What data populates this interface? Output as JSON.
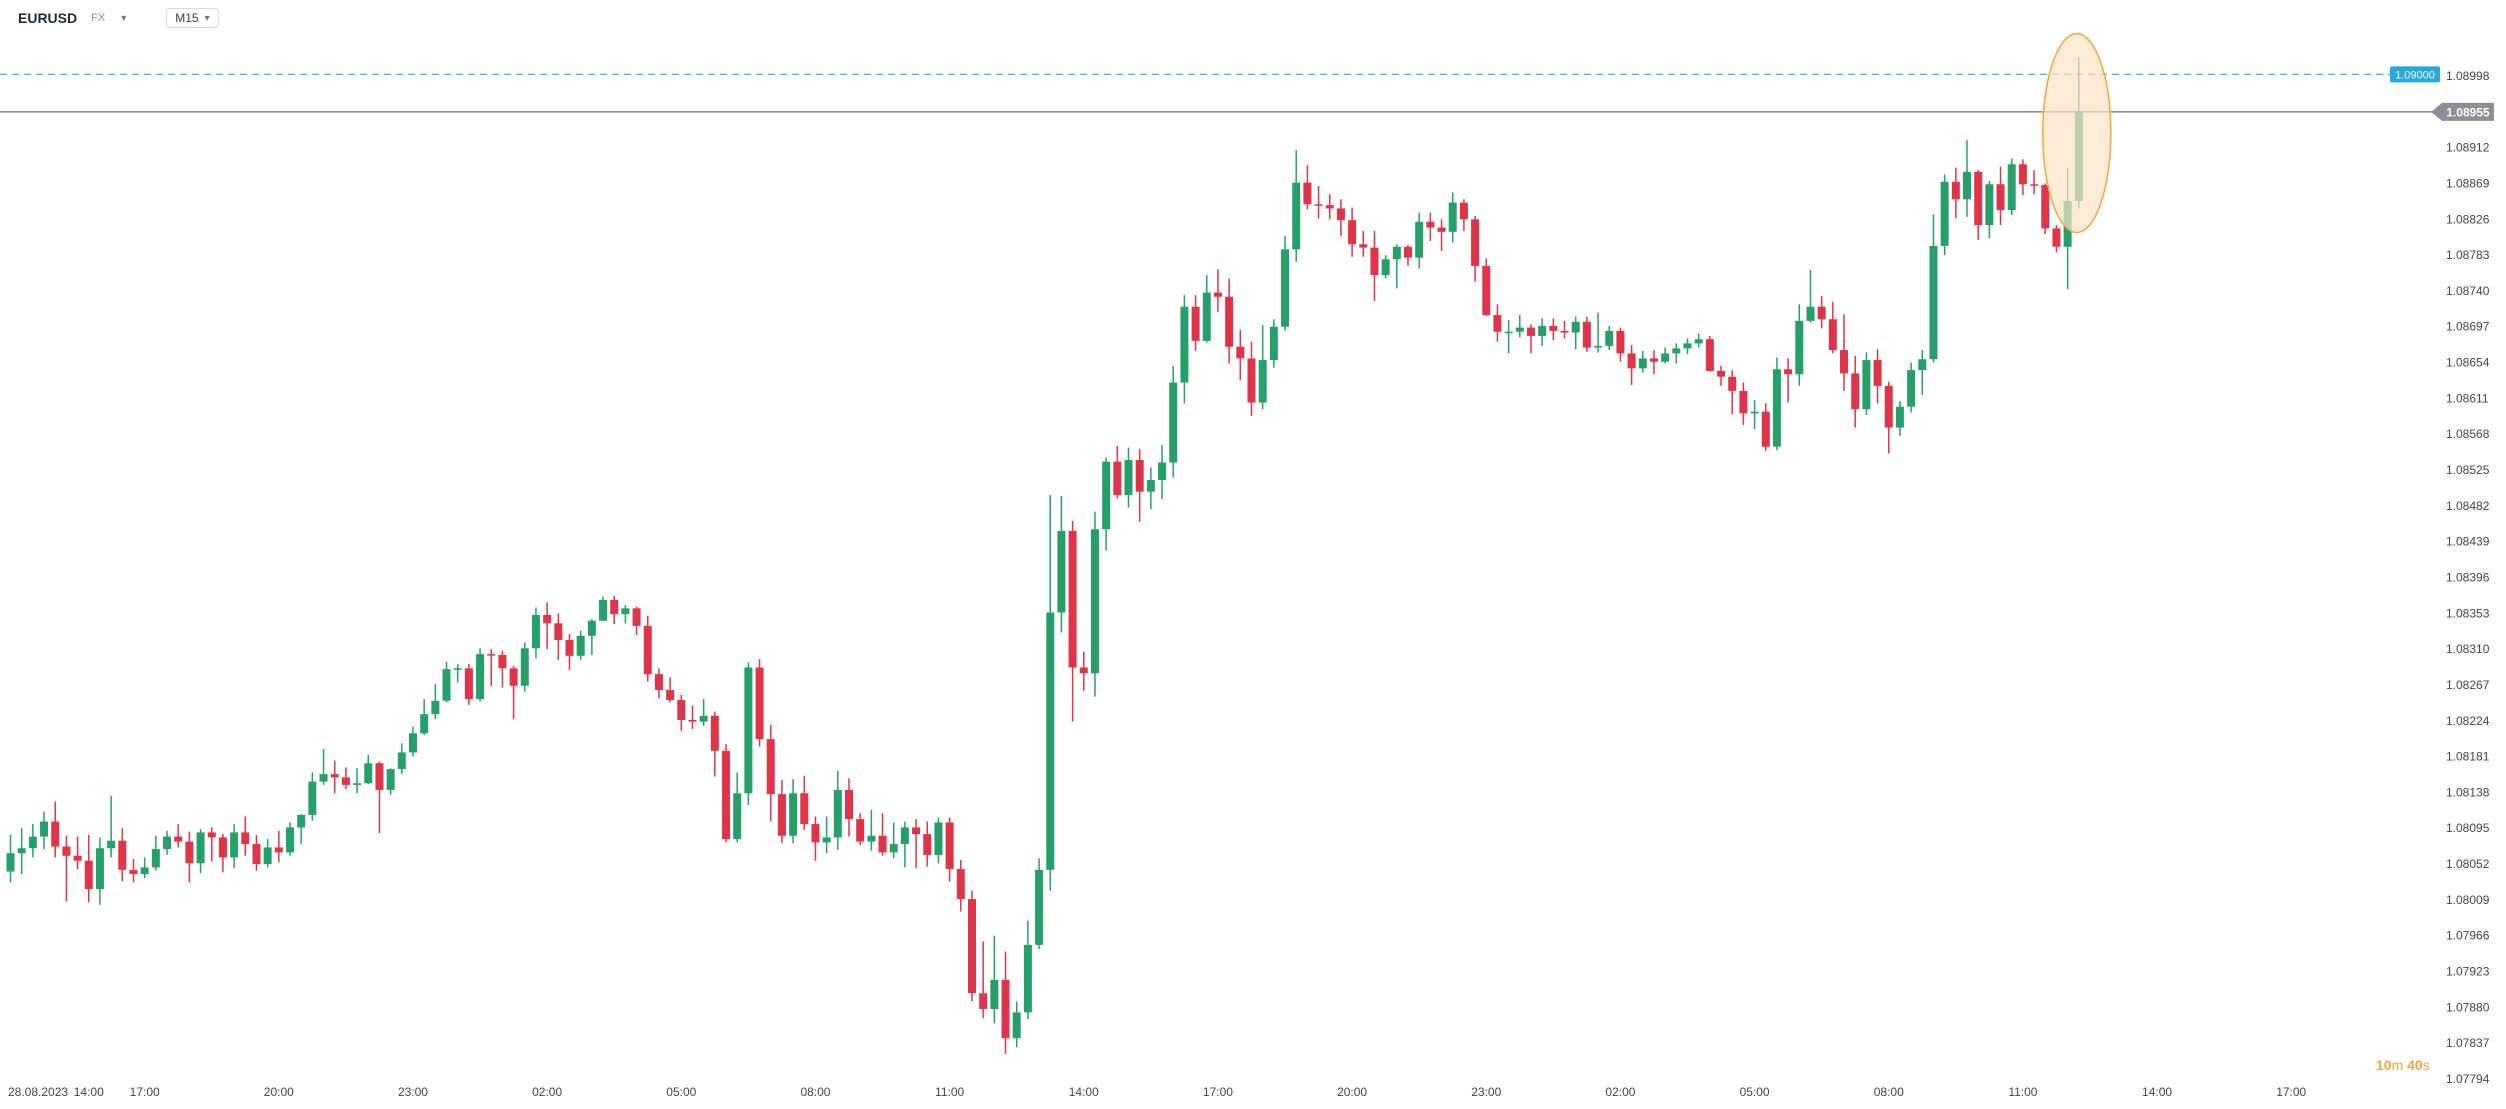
{
  "header": {
    "symbol": "EURUSD",
    "market": "FX",
    "timeframe": "M15"
  },
  "countdown": {
    "minutes": "10",
    "minutes_unit": "m",
    "seconds": "40",
    "seconds_unit": "s"
  },
  "colors": {
    "up": "#26a06a",
    "down": "#e0344b",
    "target_line": "#29a8e0",
    "price_line": "#8c8f94",
    "highlight_fill": "#fce3c4",
    "highlight_stroke": "#f4a63c",
    "axis_text": "#444444"
  },
  "chart_data": {
    "type": "candlestick",
    "symbol": "EURUSD",
    "timeframe": "M15",
    "ylim": [
      1.07794,
      1.09025
    ],
    "y_ticks": [
      "1.08998",
      "1.08955",
      "1.08912",
      "1.08869",
      "1.08826",
      "1.08783",
      "1.08740",
      "1.08697",
      "1.08654",
      "1.08611",
      "1.08568",
      "1.08525",
      "1.08482",
      "1.08439",
      "1.08396",
      "1.08353",
      "1.08310",
      "1.08267",
      "1.08224",
      "1.08181",
      "1.08138",
      "1.08095",
      "1.08052",
      "1.08009",
      "1.07966",
      "1.07923",
      "1.07880",
      "1.07837",
      "1.07794"
    ],
    "x_ticks": [
      {
        "label": "28.08.2023",
        "bar": -4
      },
      {
        "label": "14:00",
        "bar": 7
      },
      {
        "label": "17:00",
        "bar": 12
      },
      {
        "label": "20:00",
        "bar": 24
      },
      {
        "label": "23:00",
        "bar": 36
      },
      {
        "label": "02:00",
        "bar": 48
      },
      {
        "label": "05:00",
        "bar": 60
      },
      {
        "label": "08:00",
        "bar": 72
      },
      {
        "label": "11:00",
        "bar": 84
      },
      {
        "label": "14:00",
        "bar": 96
      },
      {
        "label": "17:00",
        "bar": 108
      },
      {
        "label": "20:00",
        "bar": 120
      },
      {
        "label": "23:00",
        "bar": 132
      },
      {
        "label": "02:00",
        "bar": 144
      },
      {
        "label": "05:00",
        "bar": 156
      },
      {
        "label": "08:00",
        "bar": 168
      },
      {
        "label": "11:00",
        "bar": 180
      },
      {
        "label": "14:00",
        "bar": 192
      },
      {
        "label": "17:00",
        "bar": 204
      }
    ],
    "target_price": "1.09000",
    "current_price": "1.08955",
    "bars": [
      [
        1.08043,
        1.08065,
        1.08087,
        1.0803
      ],
      [
        1.08065,
        1.08071,
        1.08095,
        1.0804
      ],
      [
        1.08071,
        1.08085,
        1.081,
        1.0806
      ],
      [
        1.08085,
        1.08103,
        1.08115,
        1.0807
      ],
      [
        1.08103,
        1.08073,
        1.08127,
        1.0806
      ],
      [
        1.08073,
        1.08062,
        1.08086,
        1.08007
      ],
      [
        1.08062,
        1.08056,
        1.08085,
        1.08046
      ],
      [
        1.08056,
        1.08022,
        1.08087,
        1.08006
      ],
      [
        1.08022,
        1.08071,
        1.08084,
        1.08003
      ],
      [
        1.08071,
        1.0808,
        1.08134,
        1.0806
      ],
      [
        1.0808,
        1.08045,
        1.08095,
        1.08031
      ],
      [
        1.08045,
        1.0804,
        1.08058,
        1.0803
      ],
      [
        1.0804,
        1.08048,
        1.0806,
        1.08035
      ],
      [
        1.08048,
        1.0807,
        1.08086,
        1.08044
      ],
      [
        1.0807,
        1.08085,
        1.08092,
        1.08063
      ],
      [
        1.08085,
        1.08079,
        1.081,
        1.08072
      ],
      [
        1.08079,
        1.08053,
        1.08091,
        1.0803
      ],
      [
        1.08053,
        1.0809,
        1.08094,
        1.08041
      ],
      [
        1.0809,
        1.08084,
        1.08096,
        1.08055
      ],
      [
        1.08084,
        1.0806,
        1.08088,
        1.08042
      ],
      [
        1.0806,
        1.0809,
        1.081,
        1.08047
      ],
      [
        1.0809,
        1.08076,
        1.08109,
        1.08062
      ],
      [
        1.08076,
        1.08052,
        1.08087,
        1.08044
      ],
      [
        1.08052,
        1.08072,
        1.08082,
        1.08048
      ],
      [
        1.08072,
        1.08066,
        1.08092,
        1.08054
      ],
      [
        1.08066,
        1.08096,
        1.08102,
        1.08062
      ],
      [
        1.08096,
        1.08111,
        1.08112,
        1.08076
      ],
      [
        1.08111,
        1.08151,
        1.08162,
        1.08104
      ],
      [
        1.08151,
        1.0816,
        1.0819,
        1.08147
      ],
      [
        1.0816,
        1.08156,
        1.08176,
        1.08137
      ],
      [
        1.08156,
        1.08147,
        1.08168,
        1.08142
      ],
      [
        1.08147,
        1.08149,
        1.08167,
        1.08137
      ],
      [
        1.08149,
        1.08173,
        1.08183,
        1.08148
      ],
      [
        1.08173,
        1.08141,
        1.08175,
        1.08089
      ],
      [
        1.08141,
        1.08166,
        1.08167,
        1.08135
      ],
      [
        1.08166,
        1.08186,
        1.08197,
        1.0816
      ],
      [
        1.08186,
        1.08209,
        1.08217,
        1.08181
      ],
      [
        1.08209,
        1.08232,
        1.0825,
        1.08207
      ],
      [
        1.08232,
        1.08248,
        1.08268,
        1.08226
      ],
      [
        1.08248,
        1.08286,
        1.08295,
        1.08246
      ],
      [
        1.08286,
        1.08287,
        1.08292,
        1.0827
      ],
      [
        1.08287,
        1.0825,
        1.08292,
        1.08243
      ],
      [
        1.0825,
        1.08304,
        1.08311,
        1.08247
      ],
      [
        1.08304,
        1.08303,
        1.0831,
        1.08266
      ],
      [
        1.08303,
        1.08287,
        1.08308,
        1.08264
      ],
      [
        1.08287,
        1.08266,
        1.0829,
        1.08226
      ],
      [
        1.08266,
        1.08311,
        1.08318,
        1.08259
      ],
      [
        1.08311,
        1.08351,
        1.0836,
        1.08299
      ],
      [
        1.08351,
        1.08341,
        1.08366,
        1.0831
      ],
      [
        1.08341,
        1.08321,
        1.08353,
        1.08297
      ],
      [
        1.08321,
        1.08302,
        1.08328,
        1.08285
      ],
      [
        1.08302,
        1.08326,
        1.08332,
        1.08297
      ],
      [
        1.08326,
        1.08344,
        1.08346,
        1.08303
      ],
      [
        1.08344,
        1.08369,
        1.08373,
        1.08345
      ],
      [
        1.08369,
        1.08352,
        1.08374,
        1.0834
      ],
      [
        1.08352,
        1.08359,
        1.08363,
        1.08341
      ],
      [
        1.08359,
        1.08338,
        1.08361,
        1.08327
      ],
      [
        1.08338,
        1.0828,
        1.0835,
        1.08271
      ],
      [
        1.0828,
        1.08261,
        1.08287,
        1.08251
      ],
      [
        1.08261,
        1.08249,
        1.08276,
        1.08246
      ],
      [
        1.08249,
        1.08225,
        1.08255,
        1.08212
      ],
      [
        1.08225,
        1.08223,
        1.08242,
        1.08214
      ],
      [
        1.08223,
        1.0823,
        1.0825,
        1.08218
      ],
      [
        1.0823,
        1.08188,
        1.08235,
        1.08157
      ],
      [
        1.08188,
        1.08082,
        1.08196,
        1.08078
      ],
      [
        1.08082,
        1.08137,
        1.08162,
        1.08078
      ],
      [
        1.08137,
        1.08288,
        1.08294,
        1.08123
      ],
      [
        1.08288,
        1.08202,
        1.08298,
        1.08193
      ],
      [
        1.08202,
        1.08136,
        1.08219,
        1.08103
      ],
      [
        1.08136,
        1.08086,
        1.08153,
        1.08077
      ],
      [
        1.08086,
        1.08137,
        1.08154,
        1.08077
      ],
      [
        1.08137,
        1.081,
        1.08158,
        1.08093
      ],
      [
        1.081,
        1.08078,
        1.08109,
        1.08056
      ],
      [
        1.08078,
        1.08084,
        1.08109,
        1.08065
      ],
      [
        1.08084,
        1.08141,
        1.08164,
        1.08069
      ],
      [
        1.08141,
        1.08106,
        1.08155,
        1.08085
      ],
      [
        1.08106,
        1.08079,
        1.08113,
        1.08075
      ],
      [
        1.08079,
        1.08086,
        1.08117,
        1.08068
      ],
      [
        1.08086,
        1.08066,
        1.08113,
        1.08062
      ],
      [
        1.08066,
        1.08076,
        1.08102,
        1.08059
      ],
      [
        1.08076,
        1.08096,
        1.08103,
        1.08048
      ],
      [
        1.08096,
        1.08088,
        1.08106,
        1.08047
      ],
      [
        1.08088,
        1.08063,
        1.08103,
        1.08049
      ],
      [
        1.08063,
        1.08102,
        1.08108,
        1.08053
      ],
      [
        1.08102,
        1.08046,
        1.08108,
        1.08031
      ],
      [
        1.08046,
        1.0801,
        1.08057,
        1.07995
      ],
      [
        1.0801,
        1.07897,
        1.0802,
        1.07887
      ],
      [
        1.07897,
        1.07878,
        1.07959,
        1.07867
      ],
      [
        1.07878,
        1.07913,
        1.07966,
        1.07861
      ],
      [
        1.07913,
        1.07843,
        1.07947,
        1.07824
      ],
      [
        1.07843,
        1.07874,
        1.07887,
        1.07832
      ],
      [
        1.07874,
        1.07955,
        1.07984,
        1.07866
      ],
      [
        1.07955,
        1.08045,
        1.08059,
        1.0795
      ],
      [
        1.08045,
        1.08354,
        1.08495,
        1.0802
      ],
      [
        1.08354,
        1.08452,
        1.08494,
        1.0833
      ],
      [
        1.08452,
        1.08288,
        1.08464,
        1.08223
      ],
      [
        1.08288,
        1.08281,
        1.08307,
        1.0826
      ],
      [
        1.08281,
        1.08454,
        1.08475,
        1.08253
      ],
      [
        1.08454,
        1.08535,
        1.0854,
        1.08428
      ],
      [
        1.08535,
        1.08495,
        1.08554,
        1.08491
      ],
      [
        1.08495,
        1.08537,
        1.08552,
        1.0848
      ],
      [
        1.08537,
        1.08499,
        1.0855,
        1.08463
      ],
      [
        1.08499,
        1.08513,
        1.08528,
        1.08478
      ],
      [
        1.08513,
        1.08534,
        1.08555,
        1.0849
      ],
      [
        1.08534,
        1.0863,
        1.0865,
        1.08516
      ],
      [
        1.0863,
        1.08721,
        1.08735,
        1.08605
      ],
      [
        1.08721,
        1.0868,
        1.08735,
        1.08668
      ],
      [
        1.0868,
        1.08738,
        1.08759,
        1.08678
      ],
      [
        1.08738,
        1.08733,
        1.08766,
        1.08715
      ],
      [
        1.08733,
        1.08673,
        1.08755,
        1.08653
      ],
      [
        1.08673,
        1.08659,
        1.08693,
        1.08633
      ],
      [
        1.08659,
        1.08606,
        1.08679,
        1.0859
      ],
      [
        1.08606,
        1.08657,
        1.08699,
        1.08598
      ],
      [
        1.08657,
        1.08697,
        1.08706,
        1.08648
      ],
      [
        1.08697,
        1.0879,
        1.08806,
        1.08692
      ],
      [
        1.0879,
        1.0887,
        1.08909,
        1.08775
      ],
      [
        1.0887,
        1.08844,
        1.08891,
        1.08838
      ],
      [
        1.08844,
        1.08843,
        1.08866,
        1.08827
      ],
      [
        1.08843,
        1.08839,
        1.08856,
        1.08826
      ],
      [
        1.08839,
        1.08825,
        1.0885,
        1.08806
      ],
      [
        1.08825,
        1.08796,
        1.0884,
        1.08781
      ],
      [
        1.08796,
        1.08792,
        1.08812,
        1.08781
      ],
      [
        1.08792,
        1.08759,
        1.08812,
        1.08728
      ],
      [
        1.08759,
        1.08778,
        1.08783,
        1.08755
      ],
      [
        1.08778,
        1.08793,
        1.08796,
        1.08743
      ],
      [
        1.08793,
        1.0878,
        1.08795,
        1.0877
      ],
      [
        1.0878,
        1.08823,
        1.08834,
        1.08767
      ],
      [
        1.08823,
        1.08816,
        1.08834,
        1.088
      ],
      [
        1.08816,
        1.08811,
        1.08826,
        1.08788
      ],
      [
        1.08811,
        1.08846,
        1.08858,
        1.08798
      ],
      [
        1.08846,
        1.08826,
        1.0885,
        1.08812
      ],
      [
        1.08826,
        1.0877,
        1.0883,
        1.08751
      ],
      [
        1.0877,
        1.08711,
        1.08779,
        1.0871
      ],
      [
        1.08711,
        1.08691,
        1.08724,
        1.08679
      ],
      [
        1.08691,
        1.08691,
        1.08705,
        1.08665
      ],
      [
        1.08691,
        1.08696,
        1.08711,
        1.08684
      ],
      [
        1.08696,
        1.08686,
        1.087,
        1.08665
      ],
      [
        1.08686,
        1.08698,
        1.08707,
        1.08674
      ],
      [
        1.08698,
        1.08692,
        1.08707,
        1.08681
      ],
      [
        1.08692,
        1.0869,
        1.08704,
        1.08683
      ],
      [
        1.0869,
        1.08703,
        1.08709,
        1.0867
      ],
      [
        1.08703,
        1.08672,
        1.08709,
        1.08667
      ],
      [
        1.08672,
        1.08674,
        1.08714,
        1.08666
      ],
      [
        1.08674,
        1.08692,
        1.08698,
        1.08669
      ],
      [
        1.08692,
        1.08665,
        1.08696,
        1.08655
      ],
      [
        1.08665,
        1.08647,
        1.08675,
        1.08627
      ],
      [
        1.08647,
        1.08659,
        1.08668,
        1.08642
      ],
      [
        1.08659,
        1.08655,
        1.08669,
        1.0864
      ],
      [
        1.08655,
        1.08665,
        1.08672,
        1.08653
      ],
      [
        1.08665,
        1.08671,
        1.08677,
        1.08653
      ],
      [
        1.08671,
        1.08677,
        1.08683,
        1.08664
      ],
      [
        1.08677,
        1.08682,
        1.08689,
        1.08672
      ],
      [
        1.08682,
        1.08644,
        1.08686,
        1.08643
      ],
      [
        1.08644,
        1.08637,
        1.0865,
        1.08626
      ],
      [
        1.08637,
        1.0862,
        1.08645,
        1.08592
      ],
      [
        1.0862,
        1.08593,
        1.0863,
        1.08579
      ],
      [
        1.08593,
        1.08595,
        1.08609,
        1.08574
      ],
      [
        1.08595,
        1.08553,
        1.08605,
        1.08548
      ],
      [
        1.08553,
        1.08646,
        1.0866,
        1.08549
      ],
      [
        1.08646,
        1.0864,
        1.08659,
        1.08606
      ],
      [
        1.0864,
        1.08704,
        1.08724,
        1.08626
      ],
      [
        1.08704,
        1.08721,
        1.08765,
        1.08702
      ],
      [
        1.08721,
        1.08706,
        1.08734,
        1.08695
      ],
      [
        1.08706,
        1.08669,
        1.08727,
        1.08665
      ],
      [
        1.08669,
        1.08641,
        1.08712,
        1.0862
      ],
      [
        1.08641,
        1.08598,
        1.08662,
        1.08576
      ],
      [
        1.08598,
        1.08657,
        1.08666,
        1.08591
      ],
      [
        1.08657,
        1.08626,
        1.0867,
        1.08605
      ],
      [
        1.08626,
        1.08576,
        1.08631,
        1.08545
      ],
      [
        1.08576,
        1.08601,
        1.08608,
        1.08566
      ],
      [
        1.08601,
        1.08645,
        1.08654,
        1.08594
      ],
      [
        1.08645,
        1.08658,
        1.08669,
        1.08615
      ],
      [
        1.08658,
        1.08794,
        1.08832,
        1.08654
      ],
      [
        1.08794,
        1.08871,
        1.0888,
        1.08783
      ],
      [
        1.08871,
        1.0885,
        1.08888,
        1.08827
      ],
      [
        1.0885,
        1.08883,
        1.08921,
        1.08829
      ],
      [
        1.08883,
        1.08819,
        1.08885,
        1.08801
      ],
      [
        1.08819,
        1.08868,
        1.08872,
        1.08803
      ],
      [
        1.08868,
        1.08837,
        1.08889,
        1.08819
      ],
      [
        1.08837,
        1.08892,
        1.08899,
        1.08831
      ],
      [
        1.08892,
        1.08868,
        1.08898,
        1.08855
      ],
      [
        1.08868,
        1.08867,
        1.08885,
        1.08856
      ],
      [
        1.08867,
        1.08815,
        1.08869,
        1.08808
      ],
      [
        1.08815,
        1.08793,
        1.08819,
        1.08786
      ],
      [
        1.08793,
        1.08848,
        1.08888,
        1.08742
      ],
      [
        1.08848,
        1.08955,
        1.0902,
        1.08839
      ]
    ]
  }
}
